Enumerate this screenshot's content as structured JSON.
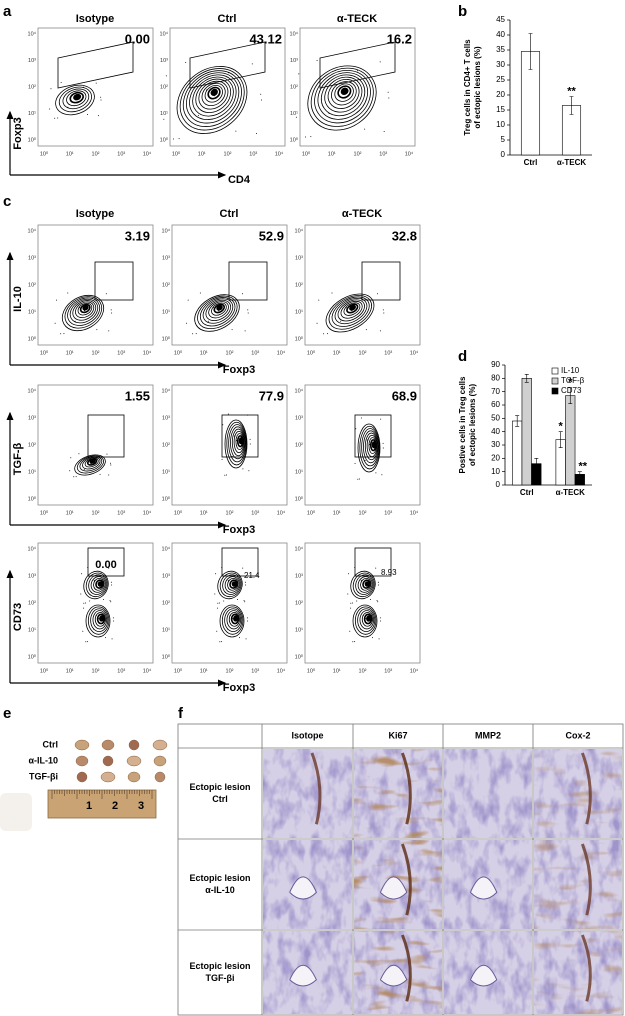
{
  "panel_a": {
    "label": "a",
    "titles": [
      "Isotype",
      "Ctrl",
      "α-TECK"
    ],
    "gate_values": [
      "0.00",
      "43.12",
      "16.2"
    ],
    "x_label": "CD4",
    "y_label": "Foxp3"
  },
  "flow_ticks": [
    "10⁰",
    "10¹",
    "10²",
    "10³",
    "10⁴"
  ],
  "chart_data": [
    {
      "type": "bar",
      "label": "b",
      "y_label": [
        "Treg cells in CD4+ T cells",
        "of ectopic lesions (%)"
      ],
      "categories": [
        "Ctrl",
        "α-TECK"
      ],
      "values": [
        34.5,
        16.5
      ],
      "errors": [
        6,
        3
      ],
      "color": "#ffffff",
      "ylim": [
        0,
        45
      ],
      "yticks": [
        0,
        5,
        10,
        15,
        20,
        25,
        30,
        35,
        40,
        45
      ],
      "significance": [
        {
          "category": "α-TECK",
          "text": "**"
        }
      ]
    },
    {
      "type": "bar",
      "label": "d",
      "y_label": [
        "Postive cells in Treg cells",
        "of ectopic lesions (%)"
      ],
      "categories": [
        "Ctrl",
        "α-TECK"
      ],
      "series": [
        {
          "name": "IL-10",
          "color": "#ffffff",
          "values": [
            48,
            34
          ],
          "errors": [
            4,
            6
          ]
        },
        {
          "name": "TGF-β",
          "color": "#d0d0d0",
          "values": [
            80,
            67
          ],
          "errors": [
            3,
            6
          ]
        },
        {
          "name": "CD73",
          "color": "#000000",
          "values": [
            16,
            8
          ],
          "errors": [
            4,
            2
          ]
        }
      ],
      "ylim": [
        0,
        90
      ],
      "yticks": [
        0,
        10,
        20,
        30,
        40,
        50,
        60,
        70,
        80,
        90
      ],
      "legend": "upper right",
      "significance": [
        {
          "series": "IL-10",
          "category": "α-TECK",
          "text": "*"
        },
        {
          "series": "TGF-β",
          "category": "α-TECK",
          "text": "*"
        },
        {
          "series": "CD73",
          "category": "α-TECK",
          "text": "**"
        }
      ]
    }
  ],
  "panel_c": {
    "label": "c",
    "titles": [
      "Isotype",
      "Ctrl",
      "α-TECK"
    ],
    "rows": [
      {
        "marker": "IL-10",
        "x_label": "Foxp3",
        "gate_values": [
          "3.19",
          "52.9",
          "32.8"
        ]
      },
      {
        "marker": "TGF-β",
        "x_label": "Foxp3",
        "gate_values": [
          "1.55",
          "77.9",
          "68.9"
        ]
      },
      {
        "marker": "CD73",
        "x_label": "Foxp3",
        "gate_values": [
          "0.00",
          "21.4",
          "8.93"
        ]
      }
    ]
  },
  "panel_e": {
    "label": "e",
    "groups": [
      "Ctrl",
      "α-IL-10",
      "TGF-βi"
    ],
    "ruler": [
      "1",
      "2",
      "3"
    ]
  },
  "panel_f": {
    "label": "f",
    "columns": [
      "Isotope",
      "Ki67",
      "MMP2",
      "Cox-2"
    ],
    "rows": [
      [
        "Ectopic lesion",
        "Ctrl"
      ],
      [
        "Ectopic lesion",
        "α-IL-10"
      ],
      [
        "Ectopic lesion",
        "TGF-βi"
      ]
    ]
  }
}
